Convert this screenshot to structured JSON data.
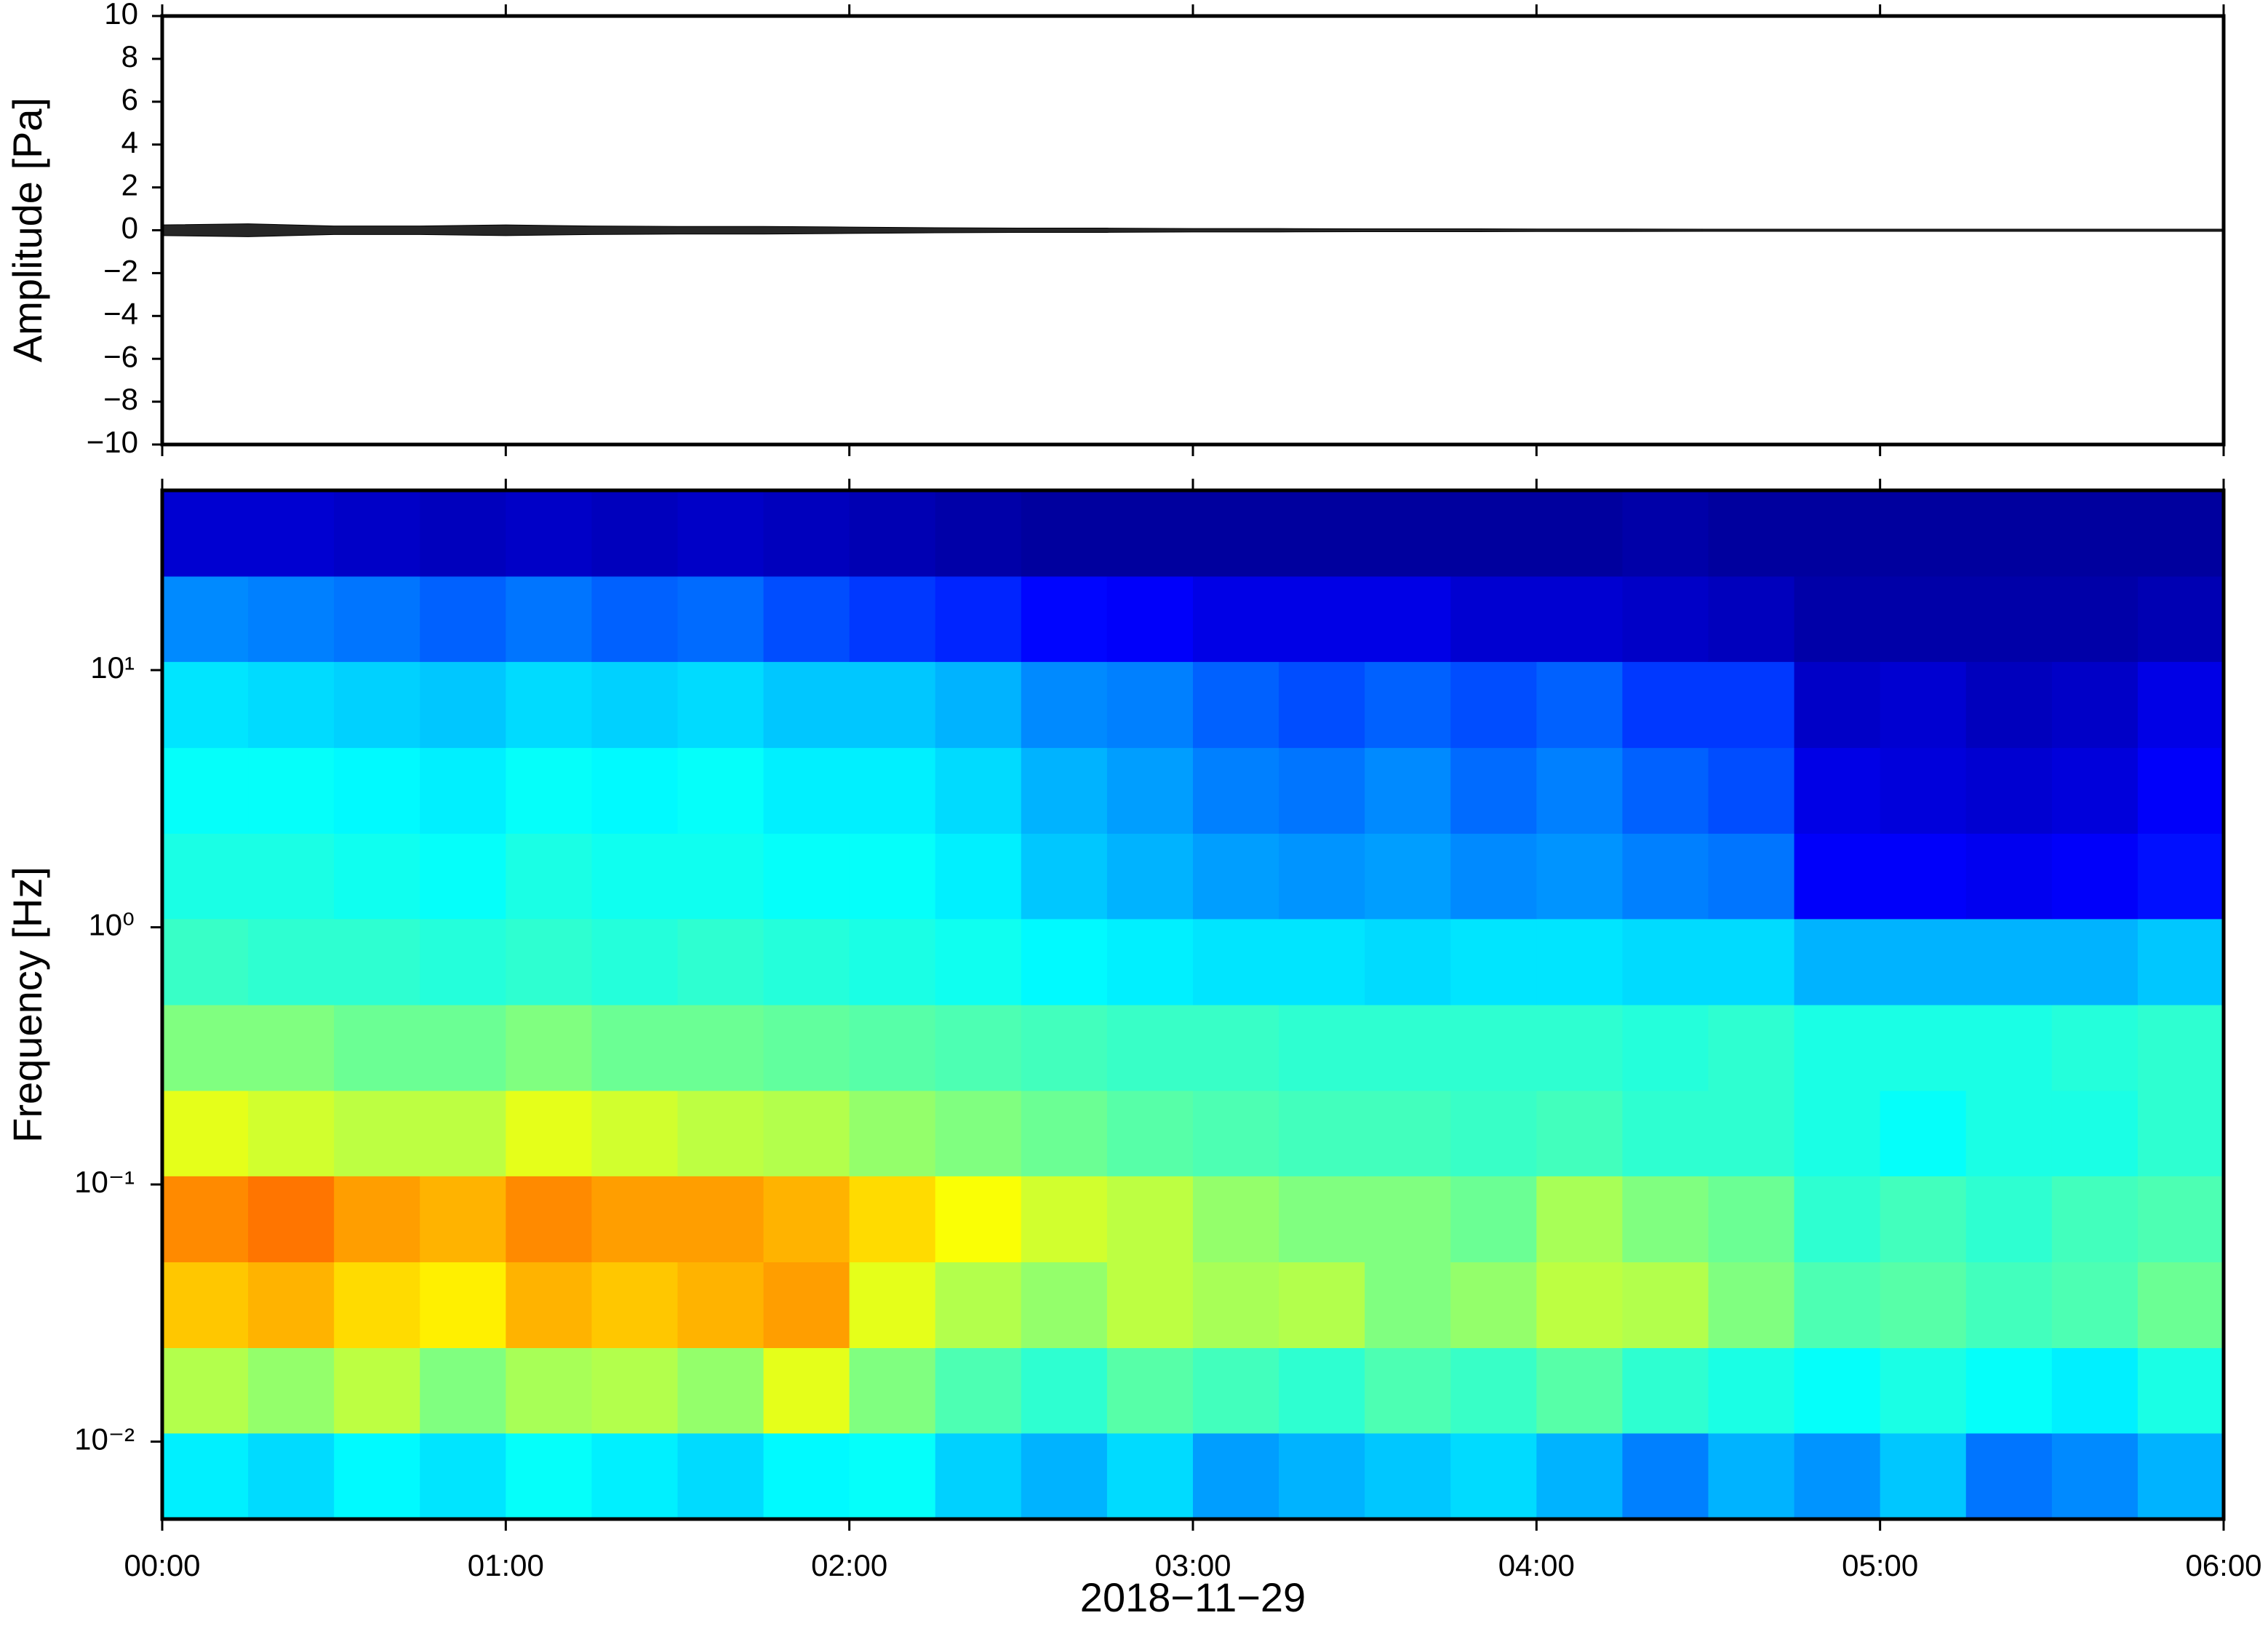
{
  "chart_data": [
    {
      "type": "area",
      "ylabel": "Amplitude [Pa]",
      "color": "#000000",
      "x": [
        0,
        0.25,
        0.5,
        0.75,
        1,
        1.25,
        1.5,
        1.75,
        2,
        2.25,
        2.5,
        2.75,
        3,
        3.25,
        3.5,
        3.75,
        4,
        4.25,
        4.5,
        4.75,
        5,
        5.25,
        5.5,
        5.75,
        6
      ],
      "values": [
        0.25,
        0.3,
        0.2,
        0.2,
        0.25,
        0.2,
        0.18,
        0.18,
        0.15,
        0.12,
        0.1,
        0.1,
        0.08,
        0.08,
        0.07,
        0.07,
        0.06,
        0.06,
        0.05,
        0.05,
        0.05,
        0.05,
        0.05,
        0.05,
        0.05
      ],
      "xlim": [
        0,
        6
      ],
      "ylim": [
        -10,
        10
      ],
      "yticks": [
        {
          "value": -10,
          "label": "−10"
        },
        {
          "value": -8,
          "label": "−8"
        },
        {
          "value": -6,
          "label": "−6"
        },
        {
          "value": -4,
          "label": "−4"
        },
        {
          "value": -2,
          "label": "−2"
        },
        0,
        2,
        4,
        6,
        8,
        10
      ]
    },
    {
      "type": "heatmap",
      "ylabel": "Frequency [Hz]",
      "xlabel": "2018−11−29",
      "colormap": "jet",
      "ylog": true,
      "xlim": [
        0,
        6
      ],
      "ylim": [
        0.005,
        50
      ],
      "xticks": [
        {
          "value": 0,
          "label": "00:00"
        },
        {
          "value": 1,
          "label": "01:00"
        },
        {
          "value": 2,
          "label": "02:00"
        },
        {
          "value": 3,
          "label": "03:00"
        },
        {
          "value": 4,
          "label": "04:00"
        },
        {
          "value": 5,
          "label": "05:00"
        },
        {
          "value": 6,
          "label": "06:00"
        }
      ],
      "yticks": [
        {
          "value": 0.01,
          "label": "10⁻²"
        },
        {
          "value": 0.1,
          "label": "10⁻¹"
        },
        {
          "value": 1,
          "label": "10⁰"
        },
        {
          "value": 10,
          "label": "10¹"
        }
      ],
      "time_bins": [
        0,
        0.25,
        0.5,
        0.75,
        1,
        1.25,
        1.5,
        1.75,
        2,
        2.25,
        2.5,
        2.75,
        3,
        3.25,
        3.5,
        3.75,
        4,
        4.25,
        4.5,
        4.75,
        5,
        5.25,
        5.5,
        5.75,
        6
      ],
      "frequency_bins": [
        0.005,
        0.0108,
        0.0232,
        0.05,
        0.108,
        0.232,
        0.5,
        1.08,
        2.32,
        5,
        10.8,
        23.2,
        50
      ],
      "z": [
        [
          0.36,
          0.34,
          0.37,
          0.35,
          0.38,
          0.36,
          0.34,
          0.37,
          0.38,
          0.33,
          0.3,
          0.34,
          0.28,
          0.3,
          0.32,
          0.34,
          0.3,
          0.25,
          0.3,
          0.27,
          0.32,
          0.24,
          0.26,
          0.3
        ],
        [
          0.55,
          0.52,
          0.56,
          0.5,
          0.54,
          0.55,
          0.52,
          0.6,
          0.5,
          0.45,
          0.42,
          0.46,
          0.44,
          0.42,
          0.45,
          0.43,
          0.46,
          0.42,
          0.4,
          0.38,
          0.4,
          0.38,
          0.36,
          0.4
        ],
        [
          0.68,
          0.7,
          0.66,
          0.64,
          0.7,
          0.68,
          0.7,
          0.72,
          0.6,
          0.55,
          0.52,
          0.56,
          0.54,
          0.55,
          0.5,
          0.52,
          0.56,
          0.55,
          0.5,
          0.45,
          0.46,
          0.44,
          0.45,
          0.48
        ],
        [
          0.74,
          0.76,
          0.72,
          0.7,
          0.74,
          0.72,
          0.72,
          0.7,
          0.66,
          0.62,
          0.58,
          0.56,
          0.52,
          0.5,
          0.5,
          0.48,
          0.54,
          0.5,
          0.48,
          0.42,
          0.44,
          0.42,
          0.44,
          0.45
        ],
        [
          0.6,
          0.58,
          0.56,
          0.56,
          0.6,
          0.58,
          0.56,
          0.55,
          0.52,
          0.5,
          0.48,
          0.46,
          0.45,
          0.44,
          0.44,
          0.43,
          0.44,
          0.42,
          0.42,
          0.4,
          0.38,
          0.4,
          0.4,
          0.42
        ],
        [
          0.5,
          0.5,
          0.48,
          0.48,
          0.5,
          0.48,
          0.48,
          0.47,
          0.46,
          0.45,
          0.44,
          0.43,
          0.43,
          0.42,
          0.42,
          0.42,
          0.42,
          0.41,
          0.42,
          0.4,
          0.4,
          0.4,
          0.41,
          0.42
        ],
        [
          0.43,
          0.42,
          0.42,
          0.41,
          0.42,
          0.41,
          0.42,
          0.41,
          0.4,
          0.39,
          0.37,
          0.36,
          0.35,
          0.35,
          0.34,
          0.35,
          0.35,
          0.34,
          0.34,
          0.3,
          0.3,
          0.3,
          0.3,
          0.32
        ],
        [
          0.4,
          0.4,
          0.39,
          0.38,
          0.4,
          0.39,
          0.39,
          0.38,
          0.38,
          0.36,
          0.32,
          0.3,
          0.28,
          0.27,
          0.28,
          0.26,
          0.27,
          0.25,
          0.24,
          0.12,
          0.12,
          0.11,
          0.12,
          0.14
        ],
        [
          0.38,
          0.38,
          0.37,
          0.36,
          0.38,
          0.37,
          0.38,
          0.36,
          0.36,
          0.34,
          0.3,
          0.28,
          0.25,
          0.24,
          0.26,
          0.23,
          0.25,
          0.22,
          0.2,
          0.1,
          0.09,
          0.08,
          0.09,
          0.12
        ],
        [
          0.35,
          0.34,
          0.33,
          0.32,
          0.34,
          0.33,
          0.34,
          0.32,
          0.32,
          0.3,
          0.26,
          0.25,
          0.22,
          0.2,
          0.22,
          0.2,
          0.22,
          0.18,
          0.18,
          0.07,
          0.08,
          0.06,
          0.07,
          0.1
        ],
        [
          0.26,
          0.25,
          0.24,
          0.22,
          0.24,
          0.22,
          0.23,
          0.2,
          0.18,
          0.16,
          0.13,
          0.12,
          0.1,
          0.1,
          0.1,
          0.08,
          0.08,
          0.07,
          0.06,
          0.04,
          0.04,
          0.04,
          0.04,
          0.05
        ],
        [
          0.08,
          0.08,
          0.07,
          0.06,
          0.07,
          0.06,
          0.07,
          0.06,
          0.05,
          0.04,
          0.03,
          0.03,
          0.03,
          0.03,
          0.03,
          0.03,
          0.03,
          0.04,
          0.03,
          0.03,
          0.03,
          0.03,
          0.03,
          0.03
        ]
      ]
    }
  ]
}
